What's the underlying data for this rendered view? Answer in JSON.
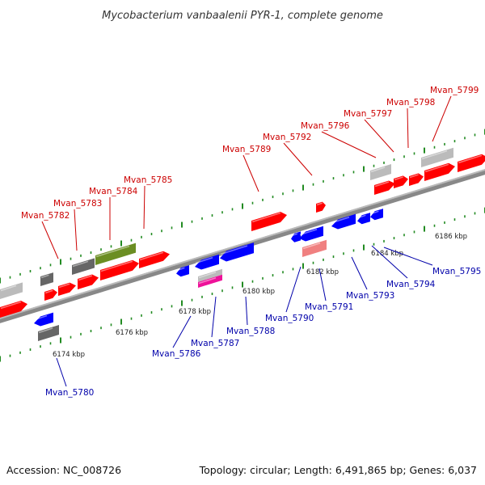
{
  "title": "Mycobacterium vanbaalenii PYR-1, complete genome",
  "footer": {
    "accession": "Accession: NC_008726",
    "summary": "Topology: circular; Length: 6,491,865 bp; Genes: 6,037"
  },
  "colors": {
    "forward_label": "#cc0000",
    "reverse_label": "#0000aa",
    "backbone": "#888888",
    "tick_dot": "#228b22",
    "forward_gene": "#ff0000",
    "reverse_gene": "#0000ff",
    "gray_gene": "#666666",
    "light_gray_gene": "#bbbbbb",
    "olive_gene": "#6b8e23",
    "pink_gene": "#f08080",
    "magenta_gene": "#ee1199"
  },
  "scale_labels": [
    "6174 kbp",
    "6176 kbp",
    "6178 kbp",
    "6180 kbp",
    "6182 kbp",
    "6184 kbp",
    "6186 kbp"
  ],
  "forward_labels": [
    "Mvan_5782",
    "Mvan_5783",
    "Mvan_5784",
    "Mvan_5785",
    "Mvan_5789",
    "Mvan_5792",
    "Mvan_5796",
    "Mvan_5797",
    "Mvan_5798",
    "Mvan_5799"
  ],
  "reverse_labels": [
    "Mvan_5780",
    "Mvan_5786",
    "Mvan_5787",
    "Mvan_5788",
    "Mvan_5790",
    "Mvan_5791",
    "Mvan_5793",
    "Mvan_5794",
    "Mvan_5795"
  ]
}
